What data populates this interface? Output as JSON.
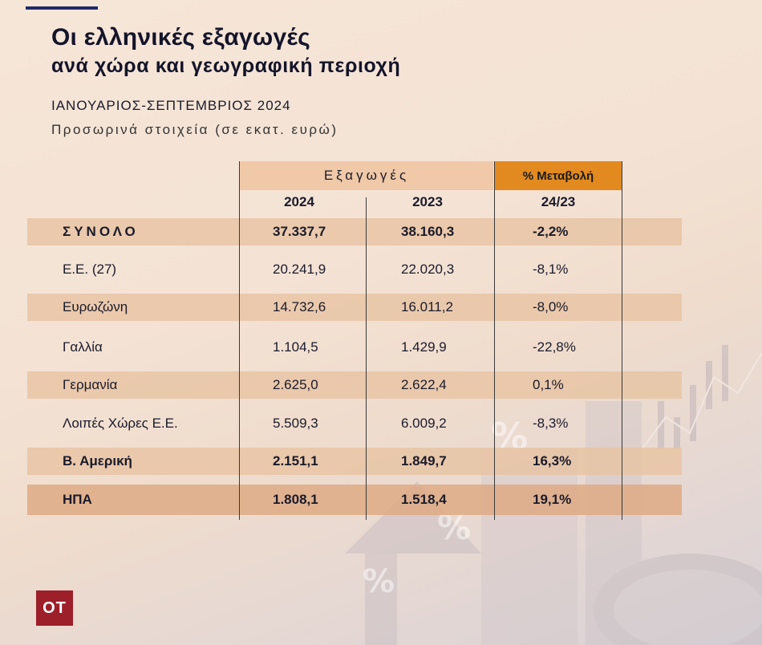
{
  "header": {
    "title_line1": "Οι ελληνικές εξαγωγές",
    "title_line2": "ανά χώρα και γεωγραφική περιοχή",
    "period": "ΙΑΝΟΥΑΡΙΟΣ-ΣΕΠΤΕΜΒΡΙΟΣ 2024",
    "note": "Προσωρινά στοιχεία (σε εκατ. ευρώ)"
  },
  "table": {
    "group_header_exports": "Εξαγωγές",
    "group_header_change": "% Μεταβολή",
    "col_2024": "2024",
    "col_2023": "2023",
    "col_change": "24/23",
    "rows": [
      {
        "label": "ΣΥΝΟΛΟ",
        "v2024": "37.337,7",
        "v2023": "38.160,3",
        "change": "-2,2%"
      },
      {
        "label": "Ε.Ε. (27)",
        "v2024": "20.241,9",
        "v2023": "22.020,3",
        "change": "-8,1%"
      },
      {
        "label": "Ευρωζώνη",
        "v2024": "14.732,6",
        "v2023": "16.011,2",
        "change": "-8,0%"
      },
      {
        "label": "Γαλλία",
        "v2024": "1.104,5",
        "v2023": "1.429,9",
        "change": "-22,8%"
      },
      {
        "label": "Γερμανία",
        "v2024": "2.625,0",
        "v2023": "2.622,4",
        "change": "0,1%"
      },
      {
        "label": "Λοιπές Χώρες Ε.Ε.",
        "v2024": "5.509,3",
        "v2023": "6.009,2",
        "change": "-8,3%"
      },
      {
        "label": "Β. Αμερική",
        "v2024": "2.151,1",
        "v2023": "1.849,7",
        "change": "16,3%"
      },
      {
        "label": "ΗΠΑ",
        "v2024": "1.808,1",
        "v2023": "1.518,4",
        "change": "19,1%"
      }
    ]
  },
  "logo": {
    "text": "ΟΤ"
  },
  "background": {
    "percent_glyph": "%"
  },
  "colors": {
    "accent_navy": "#1f2a66",
    "header_orange": "#e28a1f",
    "row_shade": "#e8c4a4",
    "logo_red": "#9c1f2a"
  }
}
